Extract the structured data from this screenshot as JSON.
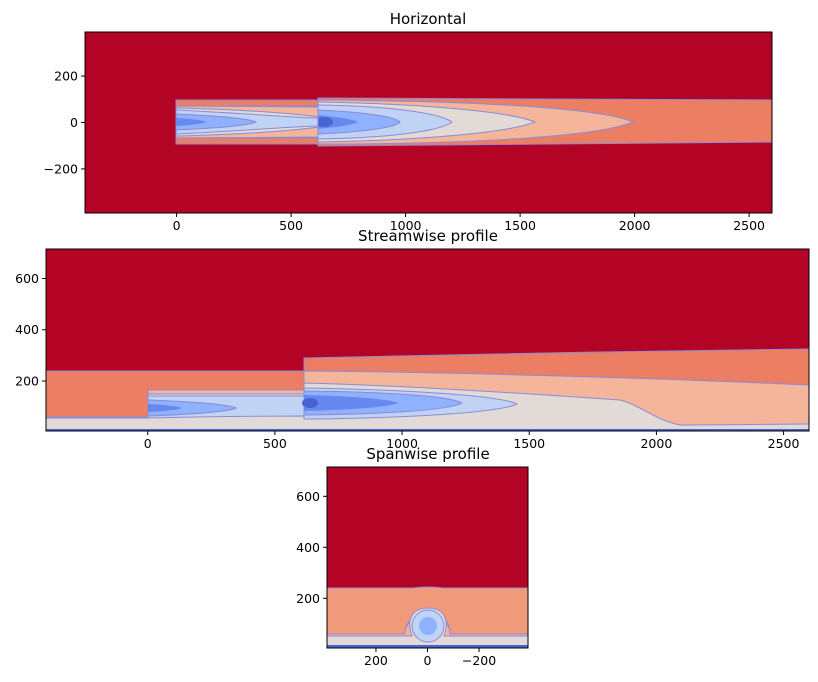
{
  "chart_data": [
    {
      "type": "contour",
      "title": "Horizontal",
      "xlim": [
        -400,
        2600
      ],
      "ylim": [
        -390,
        390
      ],
      "xticks": [
        0,
        500,
        1000,
        1500,
        2000,
        2500
      ],
      "xtick_labels": [
        "0",
        "500",
        "1000",
        "1500",
        "2000",
        "2500"
      ],
      "yticks": [
        200,
        0,
        -200
      ],
      "ytick_labels": [
        "200",
        "0",
        "−200"
      ],
      "turbines": [
        0,
        630
      ],
      "colors": {
        "background": "#b40426",
        "band1": "#ec7f63",
        "band2": "#f4b59a",
        "band3": "#e2dad6",
        "band4": "#c0d3f5",
        "band5": "#8fb1fe",
        "band6": "#6788ee",
        "band7": "#4a63d3",
        "line": "#8a8bd8"
      }
    },
    {
      "type": "contour",
      "title": "Streamwise profile",
      "xlim": [
        -400,
        2600
      ],
      "ylim": [
        5,
        715
      ],
      "xticks": [
        0,
        500,
        1000,
        1500,
        2000,
        2500
      ],
      "xtick_labels": [
        "0",
        "500",
        "1000",
        "1500",
        "2000",
        "2500"
      ],
      "yticks": [
        600,
        400,
        200
      ],
      "ytick_labels": [
        "600",
        "400",
        "200"
      ],
      "turbines": [
        0,
        630
      ],
      "hub_height": 90,
      "colors": {
        "background": "#b40426",
        "band1": "#ec7f63",
        "band2": "#f4b59a",
        "band3": "#e2dad6",
        "band4": "#c0d3f5",
        "band5": "#8fb1fe",
        "band6": "#6788ee",
        "band7": "#4a63d3",
        "ground": "#4a63d3",
        "line": "#8a8bd8"
      }
    },
    {
      "type": "contour",
      "title": "Spanwise profile",
      "xlim": [
        390,
        -390
      ],
      "ylim": [
        5,
        715
      ],
      "xticks": [
        200,
        0,
        -200
      ],
      "xtick_labels": [
        "200",
        "0",
        "−200"
      ],
      "yticks": [
        600,
        400,
        200
      ],
      "ytick_labels": [
        "600",
        "400",
        "200"
      ],
      "hub_height": 90,
      "colors": {
        "background": "#b40426",
        "band1": "#f19a7b",
        "band2": "#f4b59a",
        "band3": "#e2dad6",
        "band4": "#c0d3f5",
        "band5": "#8fb1fe",
        "ground": "#4a63d3",
        "line": "#8a8bd8"
      }
    }
  ]
}
